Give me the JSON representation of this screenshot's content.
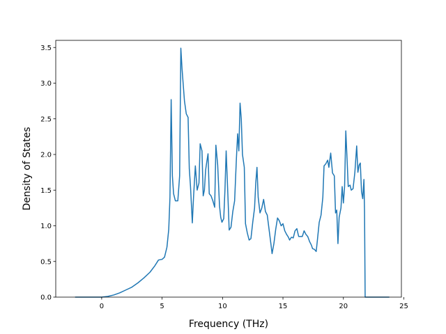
{
  "chart_data": {
    "type": "line",
    "title": "",
    "xlabel": "Frequency (THz)",
    "ylabel": "Density of States",
    "xlim": [
      -3.8,
      24.8
    ],
    "ylim": [
      0.0,
      3.6
    ],
    "xticks": [
      0,
      5,
      10,
      15,
      20,
      25
    ],
    "yticks": [
      0.0,
      0.5,
      1.0,
      1.5,
      2.0,
      2.5,
      3.0,
      3.5
    ],
    "xtick_labels": [
      "0",
      "5",
      "10",
      "15",
      "20",
      "25"
    ],
    "ytick_labels": [
      "0.0",
      "0.5",
      "1.0",
      "1.5",
      "2.0",
      "2.5",
      "3.0",
      "3.5"
    ],
    "grid": false,
    "legend": "none",
    "series_color": "#1f77b4",
    "series": [
      {
        "points": [
          [
            -2.2,
            0.0
          ],
          [
            -1.0,
            0.0
          ],
          [
            0.0,
            0.0
          ],
          [
            0.5,
            0.01
          ],
          [
            1.0,
            0.03
          ],
          [
            1.5,
            0.06
          ],
          [
            2.0,
            0.1
          ],
          [
            2.5,
            0.14
          ],
          [
            3.0,
            0.2
          ],
          [
            3.5,
            0.27
          ],
          [
            4.0,
            0.35
          ],
          [
            4.4,
            0.44
          ],
          [
            4.7,
            0.52
          ],
          [
            5.0,
            0.53
          ],
          [
            5.2,
            0.56
          ],
          [
            5.4,
            0.7
          ],
          [
            5.55,
            0.95
          ],
          [
            5.65,
            1.4
          ],
          [
            5.75,
            2.77
          ],
          [
            5.85,
            1.7
          ],
          [
            5.95,
            1.45
          ],
          [
            6.1,
            1.35
          ],
          [
            6.3,
            1.35
          ],
          [
            6.45,
            1.7
          ],
          [
            6.55,
            3.49
          ],
          [
            6.65,
            3.2
          ],
          [
            6.85,
            2.75
          ],
          [
            7.0,
            2.57
          ],
          [
            7.15,
            2.52
          ],
          [
            7.25,
            1.8
          ],
          [
            7.35,
            1.55
          ],
          [
            7.5,
            1.04
          ],
          [
            7.6,
            1.4
          ],
          [
            7.75,
            1.84
          ],
          [
            7.9,
            1.5
          ],
          [
            8.05,
            1.6
          ],
          [
            8.15,
            2.15
          ],
          [
            8.3,
            2.05
          ],
          [
            8.4,
            1.42
          ],
          [
            8.5,
            1.5
          ],
          [
            8.6,
            1.78
          ],
          [
            8.7,
            1.9
          ],
          [
            8.8,
            2.01
          ],
          [
            8.9,
            1.45
          ],
          [
            9.05,
            1.42
          ],
          [
            9.2,
            1.35
          ],
          [
            9.35,
            1.26
          ],
          [
            9.45,
            2.13
          ],
          [
            9.6,
            1.85
          ],
          [
            9.75,
            1.28
          ],
          [
            9.85,
            1.12
          ],
          [
            9.95,
            1.05
          ],
          [
            10.1,
            1.1
          ],
          [
            10.2,
            1.5
          ],
          [
            10.3,
            2.05
          ],
          [
            10.45,
            1.4
          ],
          [
            10.55,
            0.94
          ],
          [
            10.7,
            0.98
          ],
          [
            10.85,
            1.2
          ],
          [
            11.0,
            1.35
          ],
          [
            11.15,
            1.95
          ],
          [
            11.25,
            2.29
          ],
          [
            11.35,
            2.05
          ],
          [
            11.45,
            2.72
          ],
          [
            11.55,
            2.5
          ],
          [
            11.65,
            2.0
          ],
          [
            11.8,
            1.82
          ],
          [
            11.9,
            1.03
          ],
          [
            12.05,
            0.9
          ],
          [
            12.2,
            0.8
          ],
          [
            12.35,
            0.82
          ],
          [
            12.5,
            1.05
          ],
          [
            12.65,
            1.25
          ],
          [
            12.75,
            1.6
          ],
          [
            12.85,
            1.82
          ],
          [
            12.95,
            1.4
          ],
          [
            13.1,
            1.18
          ],
          [
            13.25,
            1.25
          ],
          [
            13.4,
            1.37
          ],
          [
            13.55,
            1.2
          ],
          [
            13.7,
            1.15
          ],
          [
            13.85,
            0.95
          ],
          [
            14.0,
            0.75
          ],
          [
            14.1,
            0.61
          ],
          [
            14.25,
            0.75
          ],
          [
            14.4,
            0.95
          ],
          [
            14.55,
            1.11
          ],
          [
            14.7,
            1.07
          ],
          [
            14.85,
            1.0
          ],
          [
            15.0,
            1.03
          ],
          [
            15.15,
            0.93
          ],
          [
            15.3,
            0.88
          ],
          [
            15.45,
            0.84
          ],
          [
            15.55,
            0.8
          ],
          [
            15.7,
            0.84
          ],
          [
            15.85,
            0.83
          ],
          [
            16.0,
            0.93
          ],
          [
            16.15,
            0.96
          ],
          [
            16.3,
            0.85
          ],
          [
            16.45,
            0.85
          ],
          [
            16.6,
            0.85
          ],
          [
            16.75,
            0.93
          ],
          [
            16.9,
            0.88
          ],
          [
            17.05,
            0.85
          ],
          [
            17.2,
            0.78
          ],
          [
            17.35,
            0.73
          ],
          [
            17.45,
            0.68
          ],
          [
            17.6,
            0.67
          ],
          [
            17.75,
            0.64
          ],
          [
            17.85,
            0.8
          ],
          [
            18.0,
            1.05
          ],
          [
            18.15,
            1.15
          ],
          [
            18.3,
            1.4
          ],
          [
            18.4,
            1.84
          ],
          [
            18.55,
            1.87
          ],
          [
            18.7,
            1.92
          ],
          [
            18.8,
            1.82
          ],
          [
            18.95,
            2.02
          ],
          [
            19.1,
            1.74
          ],
          [
            19.25,
            1.7
          ],
          [
            19.35,
            1.18
          ],
          [
            19.45,
            1.22
          ],
          [
            19.55,
            0.75
          ],
          [
            19.65,
            1.12
          ],
          [
            19.8,
            1.25
          ],
          [
            19.9,
            1.55
          ],
          [
            20.0,
            1.32
          ],
          [
            20.1,
            1.55
          ],
          [
            20.2,
            2.33
          ],
          [
            20.3,
            1.95
          ],
          [
            20.4,
            1.55
          ],
          [
            20.55,
            1.57
          ],
          [
            20.65,
            1.5
          ],
          [
            20.8,
            1.52
          ],
          [
            20.95,
            1.75
          ],
          [
            21.1,
            2.12
          ],
          [
            21.2,
            1.75
          ],
          [
            21.3,
            1.85
          ],
          [
            21.4,
            1.88
          ],
          [
            21.5,
            1.48
          ],
          [
            21.6,
            1.38
          ],
          [
            21.7,
            1.65
          ],
          [
            21.75,
            1.2
          ],
          [
            21.8,
            0.0
          ],
          [
            23.8,
            0.0
          ]
        ]
      }
    ]
  }
}
